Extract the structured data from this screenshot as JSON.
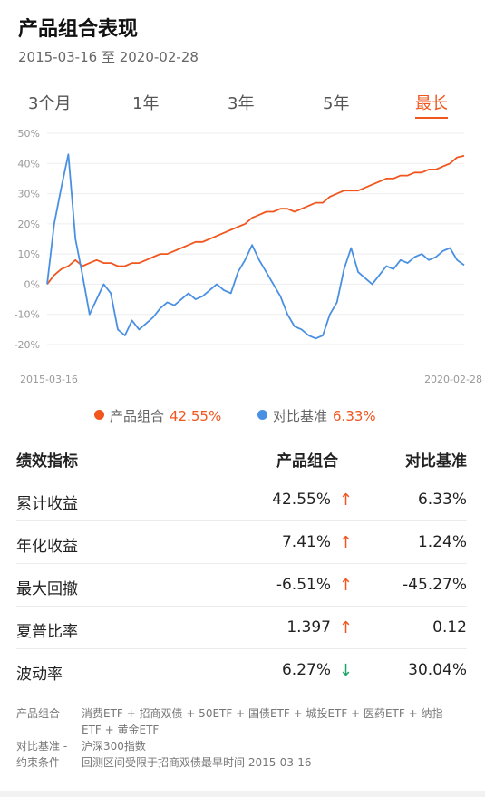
{
  "header": {
    "title": "产品组合表现",
    "date_range": "2015-03-16 至 2020-02-28"
  },
  "tabs": [
    {
      "label": "3个月",
      "active": false
    },
    {
      "label": "1年",
      "active": false
    },
    {
      "label": "3年",
      "active": false
    },
    {
      "label": "5年",
      "active": false
    },
    {
      "label": "最长",
      "active": true
    }
  ],
  "colors": {
    "portfolio": "#f0561e",
    "benchmark": "#4a90e2",
    "up": "#f0561e",
    "down": "#1fa36a"
  },
  "chart_data": {
    "type": "line",
    "x_start_label": "2015-03-16",
    "x_end_label": "2020-02-28",
    "y_ticks": [
      "50%",
      "40%",
      "30%",
      "20%",
      "10%",
      "0%",
      "-10%",
      "-20%"
    ],
    "ylim": [
      -20,
      50
    ],
    "grid": true,
    "series": [
      {
        "name": "产品组合",
        "color": "#f0561e",
        "x": [
          "2015-03",
          "2015-04",
          "2015-05",
          "2015-06",
          "2015-07",
          "2015-08",
          "2015-09",
          "2015-10",
          "2015-11",
          "2015-12",
          "2016-01",
          "2016-02",
          "2016-03",
          "2016-04",
          "2016-05",
          "2016-06",
          "2016-07",
          "2016-08",
          "2016-09",
          "2016-10",
          "2016-11",
          "2016-12",
          "2017-01",
          "2017-02",
          "2017-03",
          "2017-04",
          "2017-05",
          "2017-06",
          "2017-07",
          "2017-08",
          "2017-09",
          "2017-10",
          "2017-11",
          "2017-12",
          "2018-01",
          "2018-02",
          "2018-03",
          "2018-04",
          "2018-05",
          "2018-06",
          "2018-07",
          "2018-08",
          "2018-09",
          "2018-10",
          "2018-11",
          "2018-12",
          "2019-01",
          "2019-02",
          "2019-03",
          "2019-04",
          "2019-05",
          "2019-06",
          "2019-07",
          "2019-08",
          "2019-09",
          "2019-10",
          "2019-11",
          "2019-12",
          "2020-01",
          "2020-02"
        ],
        "values": [
          0,
          3,
          5,
          6,
          8,
          6,
          7,
          8,
          7,
          7,
          6,
          6,
          7,
          7,
          8,
          9,
          10,
          10,
          11,
          12,
          13,
          14,
          14,
          15,
          16,
          17,
          18,
          19,
          20,
          22,
          23,
          24,
          24,
          25,
          25,
          24,
          25,
          26,
          27,
          27,
          29,
          30,
          31,
          31,
          31,
          32,
          33,
          34,
          35,
          35,
          36,
          36,
          37,
          37,
          38,
          38,
          39,
          40,
          42,
          42.55
        ]
      },
      {
        "name": "对比基准",
        "color": "#4a90e2",
        "x": [
          "2015-03",
          "2015-04",
          "2015-05",
          "2015-06",
          "2015-07",
          "2015-08",
          "2015-09",
          "2015-10",
          "2015-11",
          "2015-12",
          "2016-01",
          "2016-02",
          "2016-03",
          "2016-04",
          "2016-05",
          "2016-06",
          "2016-07",
          "2016-08",
          "2016-09",
          "2016-10",
          "2016-11",
          "2016-12",
          "2017-01",
          "2017-02",
          "2017-03",
          "2017-04",
          "2017-05",
          "2017-06",
          "2017-07",
          "2017-08",
          "2017-09",
          "2017-10",
          "2017-11",
          "2017-12",
          "2018-01",
          "2018-02",
          "2018-03",
          "2018-04",
          "2018-05",
          "2018-06",
          "2018-07",
          "2018-08",
          "2018-09",
          "2018-10",
          "2018-11",
          "2018-12",
          "2019-01",
          "2019-02",
          "2019-03",
          "2019-04",
          "2019-05",
          "2019-06",
          "2019-07",
          "2019-08",
          "2019-09",
          "2019-10",
          "2019-11",
          "2019-12",
          "2020-01",
          "2020-02"
        ],
        "values": [
          0,
          20,
          32,
          43,
          15,
          3,
          -10,
          -5,
          0,
          -3,
          -15,
          -17,
          -12,
          -15,
          -13,
          -11,
          -8,
          -6,
          -7,
          -5,
          -3,
          -5,
          -4,
          -2,
          0,
          -2,
          -3,
          4,
          8,
          13,
          8,
          4,
          0,
          -4,
          -10,
          -14,
          -15,
          -17,
          -18,
          -17,
          -10,
          -6,
          5,
          12,
          4,
          2,
          0,
          3,
          6,
          5,
          8,
          7,
          9,
          10,
          8,
          9,
          11,
          12,
          8,
          6.33
        ]
      }
    ]
  },
  "legend": [
    {
      "name": "产品组合",
      "value": "42.55%"
    },
    {
      "name": "对比基准",
      "value": "6.33%"
    }
  ],
  "table": {
    "headers": [
      "绩效指标",
      "产品组合",
      "对比基准"
    ],
    "rows": [
      {
        "metric": "累计收益",
        "portfolio": "42.55%",
        "benchmark": "6.33%",
        "trend": "up"
      },
      {
        "metric": "年化收益",
        "portfolio": "7.41%",
        "benchmark": "1.24%",
        "trend": "up"
      },
      {
        "metric": "最大回撤",
        "portfolio": "-6.51%",
        "benchmark": "-45.27%",
        "trend": "up"
      },
      {
        "metric": "夏普比率",
        "portfolio": "1.397",
        "benchmark": "0.12",
        "trend": "up"
      },
      {
        "metric": "波动率",
        "portfolio": "6.27%",
        "benchmark": "30.04%",
        "trend": "down"
      }
    ]
  },
  "notes": [
    {
      "label": "产品组合",
      "text": "消费ETF + 招商双债 + 50ETF + 国债ETF + 城投ETF + 医药ETF + 纳指ETF + 黄金ETF"
    },
    {
      "label": "对比基准",
      "text": "沪深300指数"
    },
    {
      "label": "约束条件",
      "text": "回测区间受限于招商双债最早时间 2015-03-16"
    }
  ],
  "note_separator": "-"
}
